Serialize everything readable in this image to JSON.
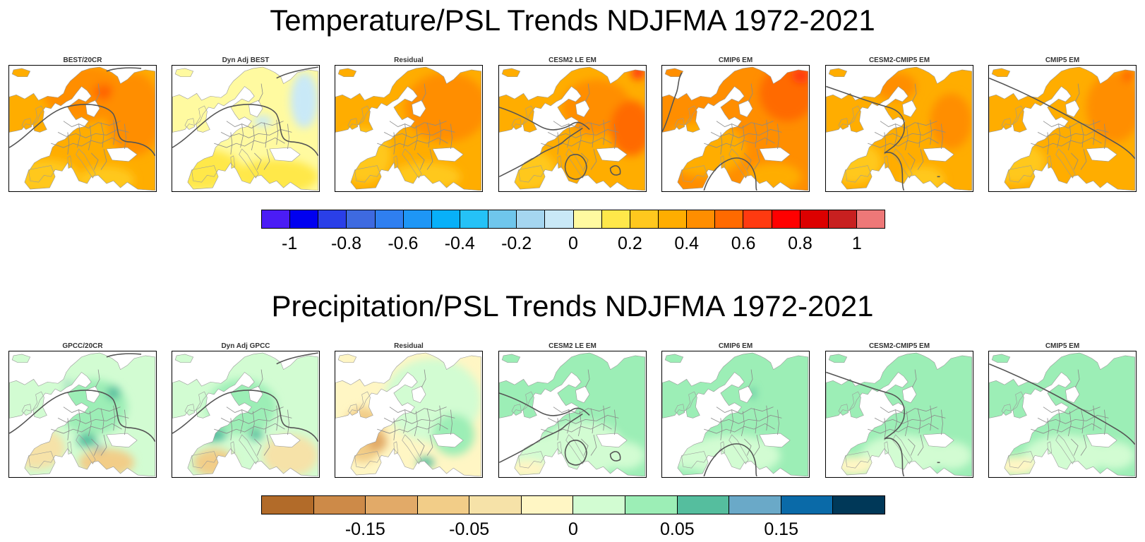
{
  "temperature": {
    "title": "Temperature/PSL Trends NDJFMA 1972-2021",
    "panels": [
      {
        "title": "BEST/20CR",
        "style": "t1"
      },
      {
        "title": "Dyn Adj BEST",
        "style": "t2"
      },
      {
        "title": "Residual",
        "style": "t3"
      },
      {
        "title": "CESM2 LE EM",
        "style": "t4"
      },
      {
        "title": "CMIP6 EM",
        "style": "t5"
      },
      {
        "title": "CESM2-CMIP5 EM",
        "style": "t6"
      },
      {
        "title": "CMIP5 EM",
        "style": "t7"
      }
    ],
    "colorbar": {
      "colors": [
        "#4b1cf5",
        "#0000f0",
        "#2a3fe8",
        "#3e6ae0",
        "#2f7ff0",
        "#1e96f5",
        "#08b0f8",
        "#25c2f7",
        "#6fc6ec",
        "#a5d6f0",
        "#c9e9f7",
        "#fffaa0",
        "#ffe84a",
        "#ffc81e",
        "#ffad00",
        "#ff8e00",
        "#ff6a00",
        "#ff3a10",
        "#ff0000",
        "#dc0000",
        "#c82020",
        "#ee7878"
      ],
      "labels": [
        "-1",
        "-0.8",
        "-0.6",
        "-0.4",
        "-0.2",
        "0",
        "0.2",
        "0.4",
        "0.6",
        "0.8",
        "1"
      ],
      "label_positions": [
        1,
        3,
        5,
        7,
        9,
        11,
        13,
        15,
        17,
        19,
        21
      ]
    }
  },
  "precipitation": {
    "title": "Precipitation/PSL Trends NDJFMA 1972-2021",
    "panels": [
      {
        "title": "GPCC/20CR",
        "style": "p1"
      },
      {
        "title": "Dyn Adj GPCC",
        "style": "p2"
      },
      {
        "title": "Residual",
        "style": "p3"
      },
      {
        "title": "CESM2 LE EM",
        "style": "p4"
      },
      {
        "title": "CMIP6 EM",
        "style": "p5"
      },
      {
        "title": "CESM2-CMIP5 EM",
        "style": "p6"
      },
      {
        "title": "CMIP5 EM",
        "style": "p7"
      }
    ],
    "colorbar": {
      "colors": [
        "#b26b29",
        "#cd8a48",
        "#e2aa68",
        "#f2cd88",
        "#f6e2a8",
        "#fff6c4",
        "#d2fcd2",
        "#9ceeb6",
        "#55be9e",
        "#6aa9c8",
        "#0a6aa8",
        "#003858"
      ],
      "labels": [
        "-0.15",
        "-0.05",
        "0",
        "0.05",
        "0.15"
      ],
      "label_positions": [
        2,
        4,
        6,
        8,
        10
      ]
    }
  },
  "colors": {
    "psl_contour": "#555555",
    "borders": "#8a8a8a",
    "coast": "#999999",
    "land_none": "#ffffff"
  }
}
